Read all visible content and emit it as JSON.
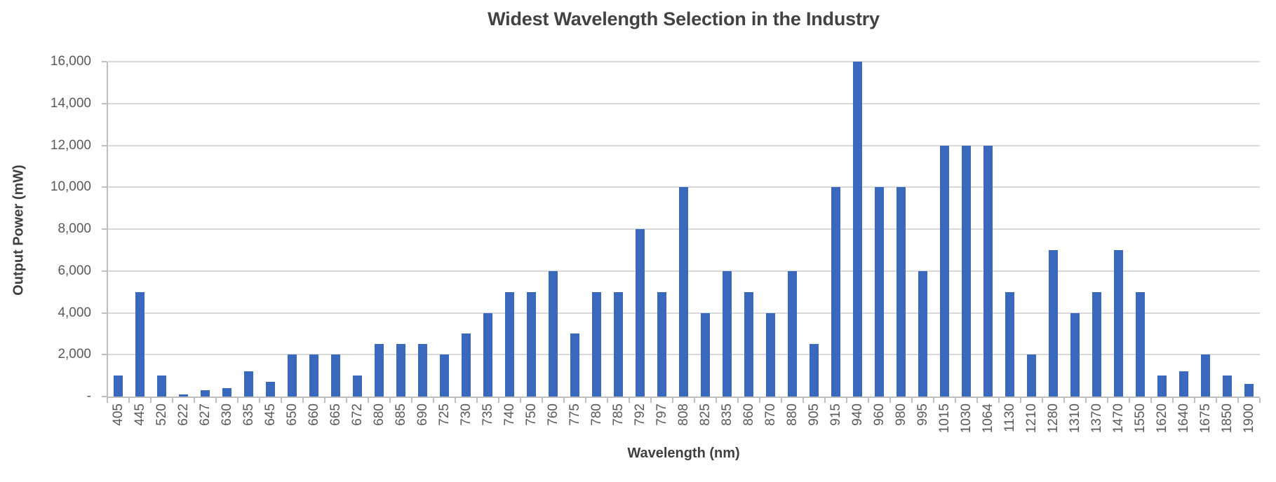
{
  "chart_data": {
    "type": "bar",
    "title": "Widest Wavelength Selection in the Industry",
    "xlabel": "Wavelength (nm)",
    "ylabel": "Output Power (mW)",
    "ylim": [
      0,
      16000
    ],
    "grid": true,
    "legend": "none",
    "bar_color": "#3a68bc",
    "gridline_color": "#d9d9d9",
    "axis_color": "#bfbfbf",
    "tick_text_color": "#595959",
    "title_color": "#424242",
    "y_ticks": [
      {
        "value": 0,
        "label": "-"
      },
      {
        "value": 2000,
        "label": "2,000"
      },
      {
        "value": 4000,
        "label": "4,000"
      },
      {
        "value": 6000,
        "label": "6,000"
      },
      {
        "value": 8000,
        "label": "8,000"
      },
      {
        "value": 10000,
        "label": "10,000"
      },
      {
        "value": 12000,
        "label": "12,000"
      },
      {
        "value": 14000,
        "label": "14,000"
      },
      {
        "value": 16000,
        "label": "16,000"
      }
    ],
    "categories": [
      "405",
      "445",
      "520",
      "622",
      "627",
      "630",
      "635",
      "645",
      "650",
      "660",
      "665",
      "672",
      "680",
      "685",
      "690",
      "725",
      "730",
      "735",
      "740",
      "750",
      "760",
      "775",
      "780",
      "785",
      "792",
      "797",
      "808",
      "825",
      "835",
      "860",
      "870",
      "880",
      "905",
      "915",
      "940",
      "960",
      "980",
      "995",
      "1015",
      "1030",
      "1064",
      "1130",
      "1210",
      "1280",
      "1310",
      "1370",
      "1470",
      "1550",
      "1620",
      "1640",
      "1675",
      "1850",
      "1900"
    ],
    "values": [
      1000,
      5000,
      1000,
      100,
      300,
      400,
      1200,
      700,
      2000,
      2000,
      2000,
      1000,
      2500,
      2500,
      2500,
      2000,
      3000,
      4000,
      5000,
      5000,
      6000,
      3000,
      5000,
      5000,
      8000,
      5000,
      10000,
      4000,
      6000,
      5000,
      4000,
      6000,
      2500,
      10000,
      16000,
      10000,
      10000,
      6000,
      12000,
      12000,
      12000,
      5000,
      2000,
      7000,
      4000,
      5000,
      7000,
      5000,
      1000,
      1200,
      2000,
      1000,
      600
    ]
  }
}
